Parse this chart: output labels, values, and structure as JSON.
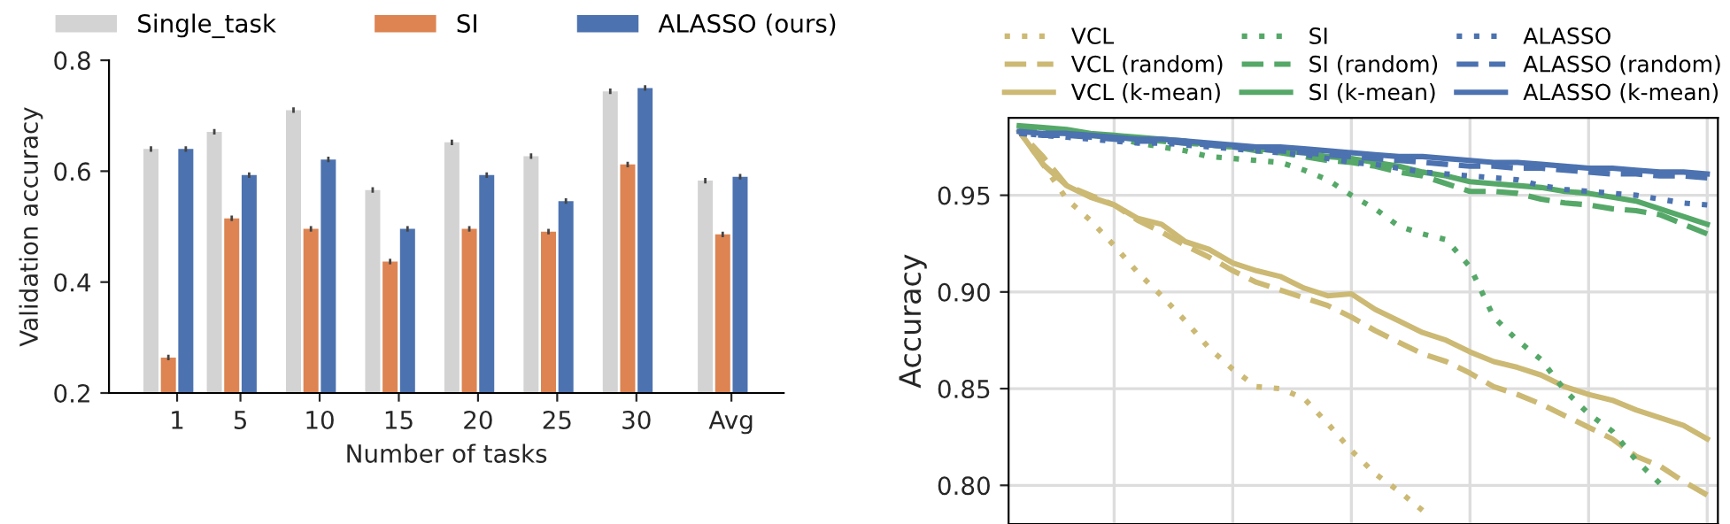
{
  "chart_data": [
    {
      "type": "bar",
      "xlabel": "Number of tasks",
      "ylabel": "Validation accuracy",
      "x": [
        1,
        5,
        10,
        15,
        20,
        25,
        30,
        36
      ],
      "xlim": [
        -3.3,
        39.3
      ],
      "xticks": [
        1,
        5,
        10,
        15,
        20,
        25,
        30,
        {
          "value": 36,
          "label": "Avg"
        }
      ],
      "ylim": [
        0.2,
        0.8
      ],
      "yticks": [
        0.2,
        0.4,
        0.6,
        0.8
      ],
      "grid": false,
      "legend": "top",
      "series": [
        {
          "name": "Single_task",
          "color": "#d3d3d3",
          "values": [
            0.64,
            0.671,
            0.71,
            0.566,
            0.652,
            0.627,
            0.744,
            0.583
          ],
          "errors": [
            0.005,
            0.005,
            0.005,
            0.005,
            0.005,
            0.005,
            0.005,
            0.005
          ]
        },
        {
          "name": "SI",
          "color": "#dd8452",
          "values": [
            0.264,
            0.515,
            0.496,
            0.437,
            0.496,
            0.491,
            0.612,
            0.486
          ],
          "errors": [
            0.005,
            0.005,
            0.005,
            0.005,
            0.005,
            0.005,
            0.005,
            0.005
          ]
        },
        {
          "name": "ALASSO (ours)",
          "color": "#4c72b0",
          "values": [
            0.64,
            0.593,
            0.621,
            0.496,
            0.593,
            0.546,
            0.75,
            0.59
          ],
          "errors": [
            0.005,
            0.005,
            0.005,
            0.005,
            0.005,
            0.005,
            0.005,
            0.005
          ]
        }
      ]
    },
    {
      "type": "line",
      "ylabel": "Accuracy",
      "categories": [
        null,
        null,
        null,
        null,
        null,
        null,
        null,
        null,
        null,
        null,
        null,
        null,
        null,
        null,
        null,
        null,
        null,
        null,
        null,
        null,
        null,
        null,
        null,
        null,
        null,
        null,
        null,
        null,
        null,
        null
      ],
      "ylim": [
        0.78,
        0.99
      ],
      "yticks": [
        {
          "value": 0.8,
          "label": "0.80"
        },
        {
          "value": 0.85,
          "label": "0.85"
        },
        {
          "value": 0.9,
          "label": "0.90"
        },
        {
          "value": 0.95,
          "label": "0.95"
        }
      ],
      "grid": true,
      "legend": "top",
      "series": [
        {
          "name": "VCL",
          "color": "#ccb974",
          "line_style": "dotted",
          "values": [
            0.983,
            0.966,
            0.948,
            0.937,
            0.924,
            0.91,
            0.898,
            0.885,
            0.871,
            0.86,
            0.851,
            0.85,
            0.845,
            0.832,
            0.818,
            0.806,
            0.797,
            0.787,
            null,
            null,
            null,
            null,
            null,
            null,
            null,
            null,
            null,
            null,
            null,
            null
          ]
        },
        {
          "name": "VCL (random)",
          "color": "#ccb974",
          "line_style": "dashed",
          "values": [
            0.983,
            0.97,
            0.955,
            0.95,
            0.945,
            0.937,
            0.931,
            0.924,
            0.918,
            0.911,
            0.905,
            0.901,
            0.897,
            0.893,
            0.887,
            0.88,
            0.874,
            0.868,
            0.864,
            0.858,
            0.851,
            0.847,
            0.842,
            0.836,
            0.83,
            0.824,
            0.815,
            0.81,
            0.802,
            0.795
          ]
        },
        {
          "name": "VCL (k-mean)",
          "color": "#ccb974",
          "line_style": "solid",
          "values": [
            0.983,
            0.966,
            0.955,
            0.949,
            0.945,
            0.938,
            0.935,
            0.926,
            0.922,
            0.915,
            0.911,
            0.908,
            0.902,
            0.898,
            0.899,
            0.891,
            0.885,
            0.879,
            0.875,
            0.869,
            0.864,
            0.861,
            0.857,
            0.851,
            0.847,
            0.844,
            0.839,
            0.835,
            0.831,
            0.824
          ]
        },
        {
          "name": "SI",
          "color": "#55a868",
          "line_style": "dotted",
          "values": [
            0.986,
            0.984,
            0.982,
            0.981,
            0.98,
            0.977,
            0.975,
            0.973,
            0.97,
            0.969,
            0.968,
            0.967,
            0.963,
            0.958,
            0.95,
            0.943,
            0.934,
            0.93,
            0.927,
            0.913,
            0.887,
            0.875,
            0.865,
            0.849,
            0.837,
            0.828,
            0.813,
            0.801,
            null,
            null
          ]
        },
        {
          "name": "SI (random)",
          "color": "#55a868",
          "line_style": "dashed",
          "values": [
            0.985,
            0.984,
            0.983,
            0.981,
            0.98,
            0.979,
            0.978,
            0.977,
            0.976,
            0.975,
            0.973,
            0.972,
            0.97,
            0.968,
            0.967,
            0.965,
            0.962,
            0.96,
            0.956,
            0.952,
            0.952,
            0.951,
            0.948,
            0.946,
            0.945,
            0.943,
            0.942,
            0.94,
            0.935,
            0.93
          ]
        },
        {
          "name": "SI (k-mean)",
          "color": "#55a868",
          "line_style": "solid",
          "values": [
            0.986,
            0.985,
            0.984,
            0.982,
            0.981,
            0.98,
            0.979,
            0.978,
            0.976,
            0.975,
            0.974,
            0.973,
            0.972,
            0.97,
            0.969,
            0.967,
            0.965,
            0.962,
            0.96,
            0.957,
            0.956,
            0.955,
            0.954,
            0.952,
            0.951,
            0.949,
            0.947,
            0.943,
            0.939,
            0.935
          ]
        },
        {
          "name": "ALASSO",
          "color": "#4c72b0",
          "line_style": "dotted",
          "values": [
            0.982,
            0.981,
            0.98,
            0.979,
            0.978,
            0.977,
            0.977,
            0.976,
            0.975,
            0.974,
            0.973,
            0.972,
            0.971,
            0.969,
            0.967,
            0.966,
            0.964,
            0.962,
            0.961,
            0.96,
            0.959,
            0.958,
            0.955,
            0.953,
            0.952,
            0.951,
            0.95,
            0.948,
            0.946,
            0.945
          ]
        },
        {
          "name": "ALASSO (random)",
          "color": "#4c72b0",
          "line_style": "dashed",
          "values": [
            0.982,
            0.981,
            0.981,
            0.98,
            0.979,
            0.978,
            0.978,
            0.977,
            0.976,
            0.975,
            0.974,
            0.973,
            0.972,
            0.971,
            0.97,
            0.969,
            0.968,
            0.967,
            0.966,
            0.965,
            0.965,
            0.964,
            0.964,
            0.963,
            0.962,
            0.961,
            0.961,
            0.96,
            0.96,
            0.959
          ]
        },
        {
          "name": "ALASSO (k-mean)",
          "color": "#4c72b0",
          "line_style": "solid",
          "values": [
            0.983,
            0.982,
            0.982,
            0.981,
            0.98,
            0.979,
            0.979,
            0.978,
            0.977,
            0.976,
            0.975,
            0.975,
            0.974,
            0.973,
            0.972,
            0.971,
            0.97,
            0.97,
            0.969,
            0.968,
            0.967,
            0.967,
            0.966,
            0.965,
            0.964,
            0.964,
            0.963,
            0.962,
            0.962,
            0.961
          ]
        }
      ]
    }
  ]
}
